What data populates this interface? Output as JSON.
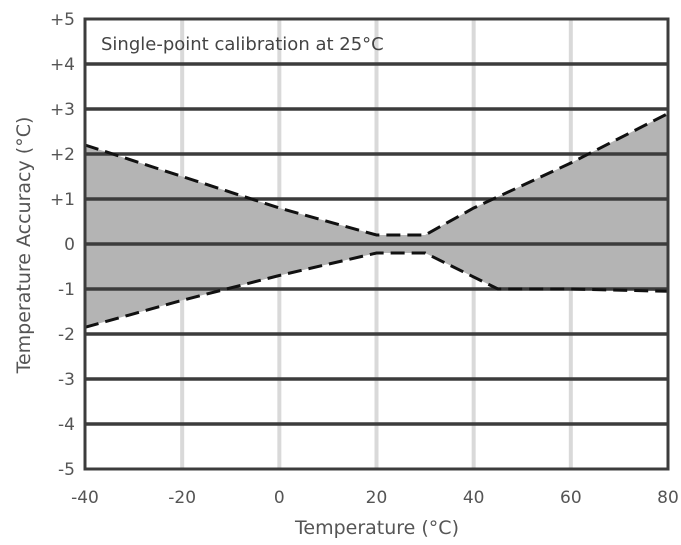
{
  "chart_data": {
    "type": "area",
    "annotation": "Single-point calibration at 25°C",
    "xlabel": "Temperature (°C)",
    "ylabel": "Temperature Accuracy (°C)",
    "xlim": [
      -40,
      80
    ],
    "ylim": [
      -5,
      5
    ],
    "x_ticks": [
      -40,
      -20,
      0,
      20,
      40,
      60,
      80
    ],
    "x_tick_labels": [
      "-40",
      "-20",
      "0",
      "20",
      "40",
      "60",
      "80"
    ],
    "y_ticks": [
      5,
      4,
      3,
      2,
      1,
      0,
      -1,
      -2,
      -3,
      -4,
      -5
    ],
    "y_tick_labels": [
      "+5",
      "+4",
      "+3",
      "+2",
      "+1",
      "0",
      "-1",
      "-2",
      "-3",
      "-4",
      "-5"
    ],
    "grid": true,
    "series": [
      {
        "role": "upper-limit",
        "x": [
          -40,
          0,
          20,
          30,
          40,
          60,
          80
        ],
        "y": [
          2.2,
          0.8,
          0.2,
          0.2,
          0.8,
          1.8,
          2.9
        ]
      },
      {
        "role": "lower-limit",
        "x": [
          -40,
          -20,
          0,
          20,
          30,
          45,
          60,
          80
        ],
        "y": [
          -1.85,
          -1.25,
          -0.7,
          -0.2,
          -0.2,
          -1.0,
          -1.0,
          -1.05
        ]
      }
    ],
    "colors": {
      "band_fill": "#b4b4b4",
      "limit_line": "#111111",
      "major_grid": "#3c3c3c",
      "minor_grid": "#d9d9d9"
    }
  }
}
